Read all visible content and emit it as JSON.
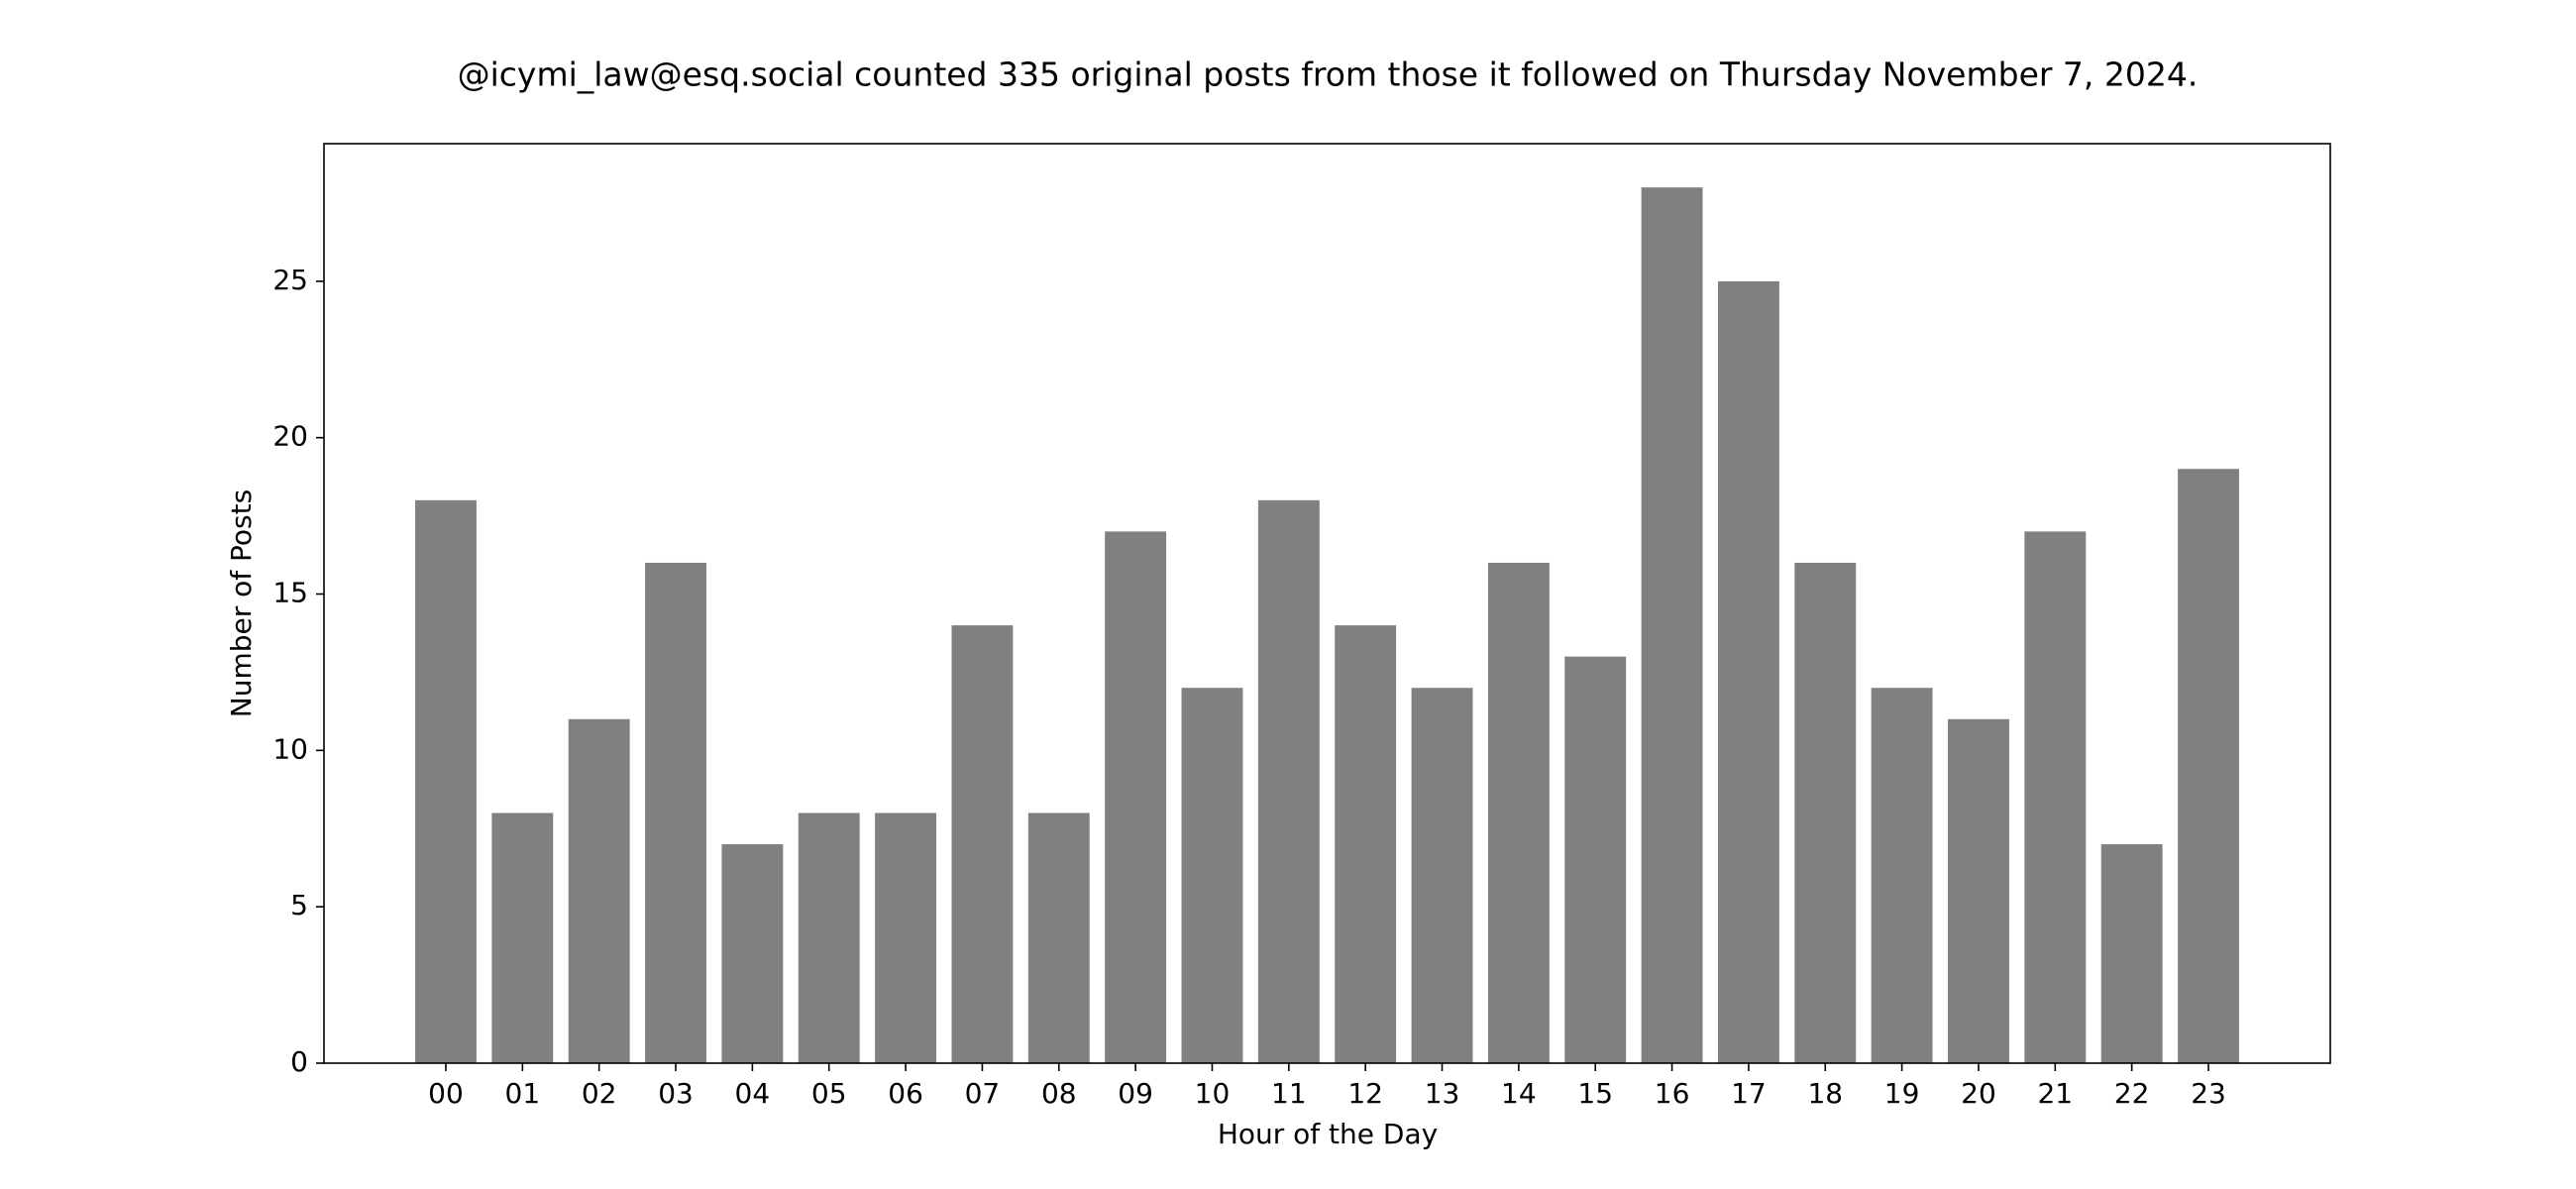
{
  "chart_data": {
    "type": "bar",
    "title": "@icymi_law@esq.social counted 335 original posts from those it followed on Thursday November 7, 2024.",
    "x_label": "Hour of the Day",
    "y_label": "Number of Posts",
    "categories": [
      "00",
      "01",
      "02",
      "03",
      "04",
      "05",
      "06",
      "07",
      "08",
      "09",
      "10",
      "11",
      "12",
      "13",
      "14",
      "15",
      "16",
      "17",
      "18",
      "19",
      "20",
      "21",
      "22",
      "23"
    ],
    "values": [
      18,
      8,
      11,
      16,
      7,
      8,
      8,
      14,
      8,
      17,
      12,
      18,
      14,
      12,
      16,
      13,
      28,
      25,
      16,
      12,
      11,
      17,
      7,
      19
    ],
    "color": "#808080",
    "ylim": [
      0,
      29.4
    ],
    "yticks": [
      0,
      5,
      10,
      15,
      20,
      25
    ],
    "grid": false
  }
}
